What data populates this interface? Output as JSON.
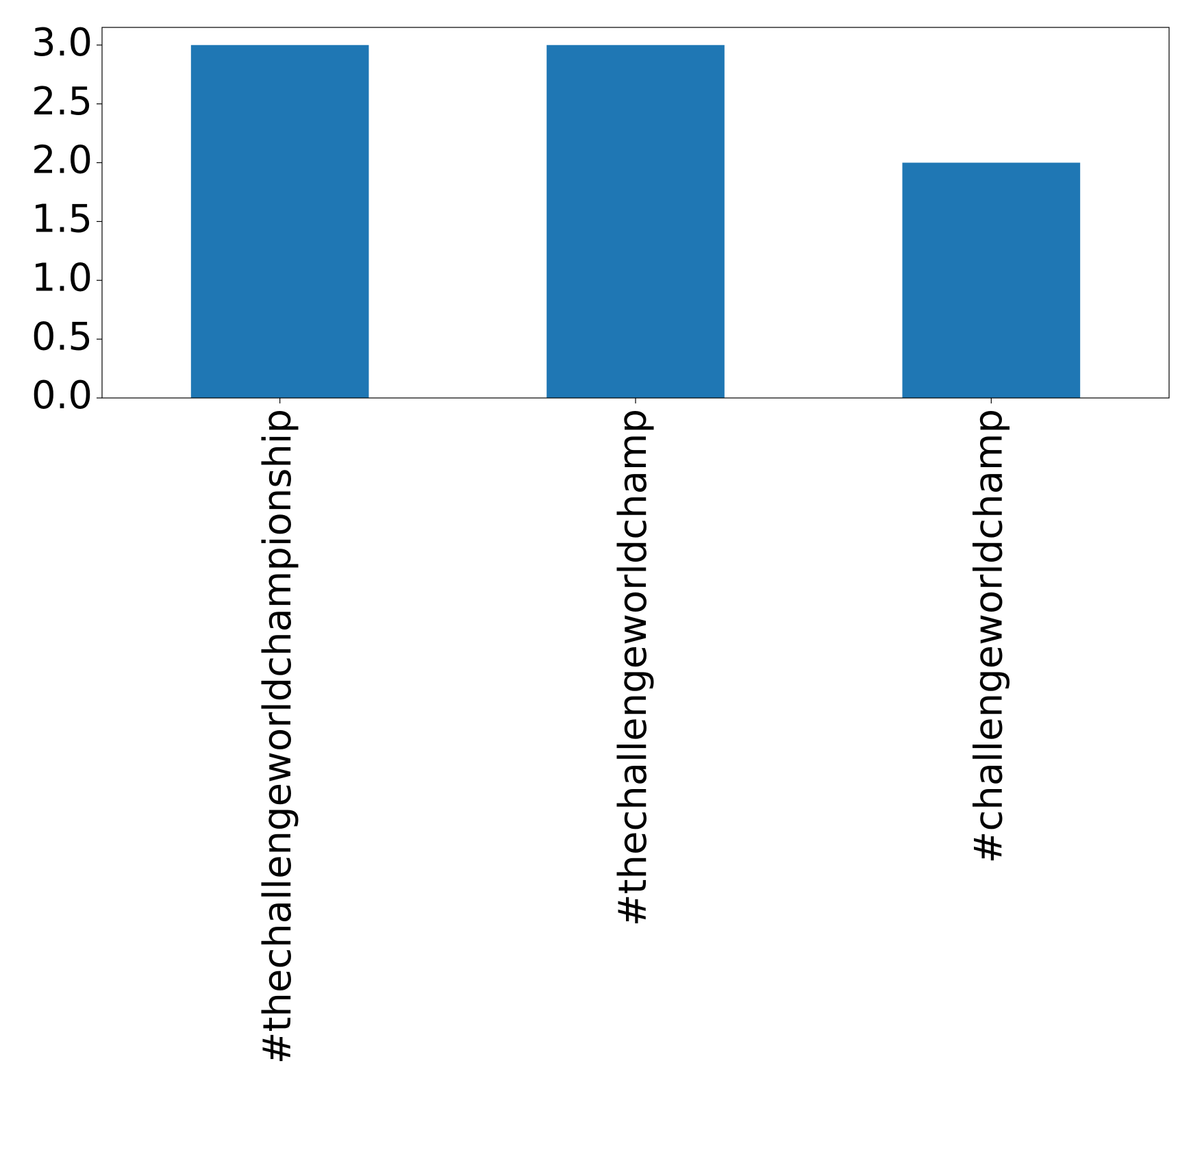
{
  "chart_data": {
    "type": "bar",
    "categories": [
      "#thechallengeworldchampionship",
      "#thechallengeworldchamp",
      "#challengeworldchamp"
    ],
    "values": [
      3,
      3,
      2
    ],
    "color": "#1f77b4",
    "ylim": [
      0,
      3.15
    ],
    "yticks": [
      {
        "value": 0,
        "label": "0.0"
      },
      0.5,
      {
        "value": 1,
        "label": "1.0"
      },
      1.5,
      {
        "value": 2,
        "label": "2.0"
      },
      2.5,
      {
        "value": 3,
        "label": "3.0"
      }
    ]
  }
}
